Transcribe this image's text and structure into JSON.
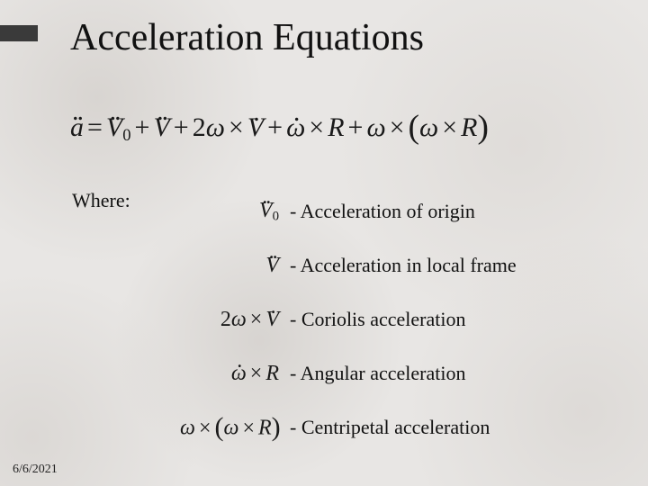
{
  "title": "Acceleration Equations",
  "where_label": "Where:",
  "equation": {
    "lhs_var": "a",
    "terms": [
      {
        "lead": "",
        "sym": "V",
        "sub": "0",
        "ddot": true
      },
      {
        "lead": "+",
        "sym": "V",
        "ddot": true
      },
      {
        "lead": "+",
        "coef": "2",
        "sym_l": "ω",
        "cross": true,
        "sym_r": "V",
        "rdot": true
      },
      {
        "lead": "+",
        "sym_l": "ω",
        "ldot": true,
        "cross": true,
        "sym_r": "R"
      },
      {
        "lead": "+",
        "sym_l": "ω",
        "cross": true,
        "paren": {
          "sym_l": "ω",
          "cross": true,
          "sym_r": "R"
        }
      }
    ]
  },
  "defs": [
    {
      "expr": {
        "sym": "V",
        "sub": "0",
        "ddot": true
      },
      "text": "- Acceleration of origin"
    },
    {
      "expr": {
        "sym": "V",
        "ddot": true
      },
      "text": "- Acceleration in local frame"
    },
    {
      "expr": {
        "coef": "2",
        "sym_l": "ω",
        "cross": true,
        "sym_r": "V",
        "rdot": true
      },
      "text": "- Coriolis acceleration"
    },
    {
      "expr": {
        "sym_l": "ω",
        "ldot": true,
        "cross": true,
        "sym_r": "R"
      },
      "text": "- Angular acceleration"
    },
    {
      "expr": {
        "sym_l": "ω",
        "cross": true,
        "paren": {
          "sym_l": "ω",
          "cross": true,
          "sym_r": "R"
        }
      },
      "text": "- Centripetal acceleration"
    }
  ],
  "footer_date": "6/6/2021"
}
